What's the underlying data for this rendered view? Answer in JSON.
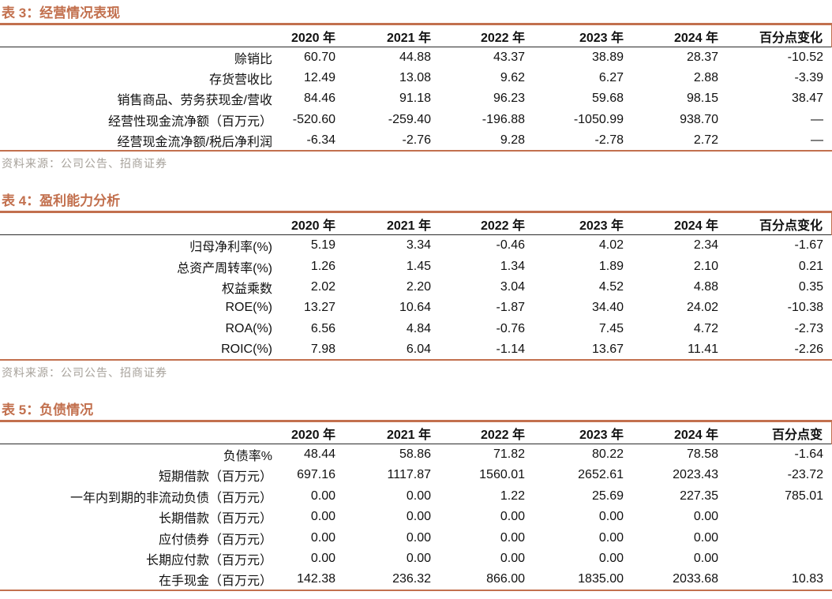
{
  "theme": {
    "accent": "#C2704E",
    "header-rule": "#2B2B2B",
    "text": "#111111",
    "muted": "#A7A29B",
    "bg": "#FFFFFF"
  },
  "tables": [
    {
      "title": "表 3：经营情况表现",
      "columns": [
        "",
        "2020 年",
        "2021 年",
        "2022 年",
        "2023 年",
        "2024 年",
        "百分点变化"
      ],
      "rows": [
        {
          "label": "赊销比",
          "values": [
            "60.70",
            "44.88",
            "43.37",
            "38.89",
            "28.37",
            "-10.52"
          ]
        },
        {
          "label": "存货营收比",
          "values": [
            "12.49",
            "13.08",
            "9.62",
            "6.27",
            "2.88",
            "-3.39"
          ]
        },
        {
          "label": "销售商品、劳务获现金/营收",
          "values": [
            "84.46",
            "91.18",
            "96.23",
            "59.68",
            "98.15",
            "38.47"
          ]
        },
        {
          "label": "经营性现金流净额（百万元）",
          "values": [
            "-520.60",
            "-259.40",
            "-196.88",
            "-1050.99",
            "938.70",
            "—"
          ]
        },
        {
          "label": "经营现金流净额/税后净利润",
          "values": [
            "-6.34",
            "-2.76",
            "9.28",
            "-2.78",
            "2.72",
            "—"
          ]
        }
      ],
      "source": "资料来源：公司公告、招商证券"
    },
    {
      "title": "表 4：盈利能力分析",
      "columns": [
        "",
        "2020 年",
        "2021 年",
        "2022 年",
        "2023 年",
        "2024 年",
        "百分点变化"
      ],
      "rows": [
        {
          "label": "归母净利率(%)",
          "values": [
            "5.19",
            "3.34",
            "-0.46",
            "4.02",
            "2.34",
            "-1.67"
          ]
        },
        {
          "label": "总资产周转率(%)",
          "values": [
            "1.26",
            "1.45",
            "1.34",
            "1.89",
            "2.10",
            "0.21"
          ]
        },
        {
          "label": "权益乘数",
          "values": [
            "2.02",
            "2.20",
            "3.04",
            "4.52",
            "4.88",
            "0.35"
          ]
        },
        {
          "label": "ROE(%)",
          "values": [
            "13.27",
            "10.64",
            "-1.87",
            "34.40",
            "24.02",
            "-10.38"
          ]
        },
        {
          "label": "ROA(%)",
          "values": [
            "6.56",
            "4.84",
            "-0.76",
            "7.45",
            "4.72",
            "-2.73"
          ]
        },
        {
          "label": "ROIC(%)",
          "values": [
            "7.98",
            "6.04",
            "-1.14",
            "13.67",
            "11.41",
            "-2.26"
          ]
        }
      ],
      "source": "资料来源：公司公告、招商证券"
    },
    {
      "title": "表 5：负债情况",
      "columns": [
        "",
        "2020 年",
        "2021 年",
        "2022 年",
        "2023 年",
        "2024 年",
        "百分点变"
      ],
      "rows": [
        {
          "label": "负债率%",
          "values": [
            "48.44",
            "58.86",
            "71.82",
            "80.22",
            "78.58",
            "-1.64"
          ]
        },
        {
          "label": "短期借款（百万元）",
          "values": [
            "697.16",
            "1117.87",
            "1560.01",
            "2652.61",
            "2023.43",
            "-23.72"
          ]
        },
        {
          "label": "一年内到期的非流动负债（百万元）",
          "values": [
            "0.00",
            "0.00",
            "1.22",
            "25.69",
            "227.35",
            "785.01"
          ]
        },
        {
          "label": "长期借款（百万元）",
          "values": [
            "0.00",
            "0.00",
            "0.00",
            "0.00",
            "0.00",
            ""
          ]
        },
        {
          "label": "应付债券（百万元）",
          "values": [
            "0.00",
            "0.00",
            "0.00",
            "0.00",
            "0.00",
            ""
          ]
        },
        {
          "label": "长期应付款（百万元）",
          "values": [
            "0.00",
            "0.00",
            "0.00",
            "0.00",
            "0.00",
            ""
          ]
        },
        {
          "label": "在手现金（百万元）",
          "values": [
            "142.38",
            "236.32",
            "866.00",
            "1835.00",
            "2033.68",
            "10.83"
          ]
        }
      ],
      "source": ""
    }
  ]
}
